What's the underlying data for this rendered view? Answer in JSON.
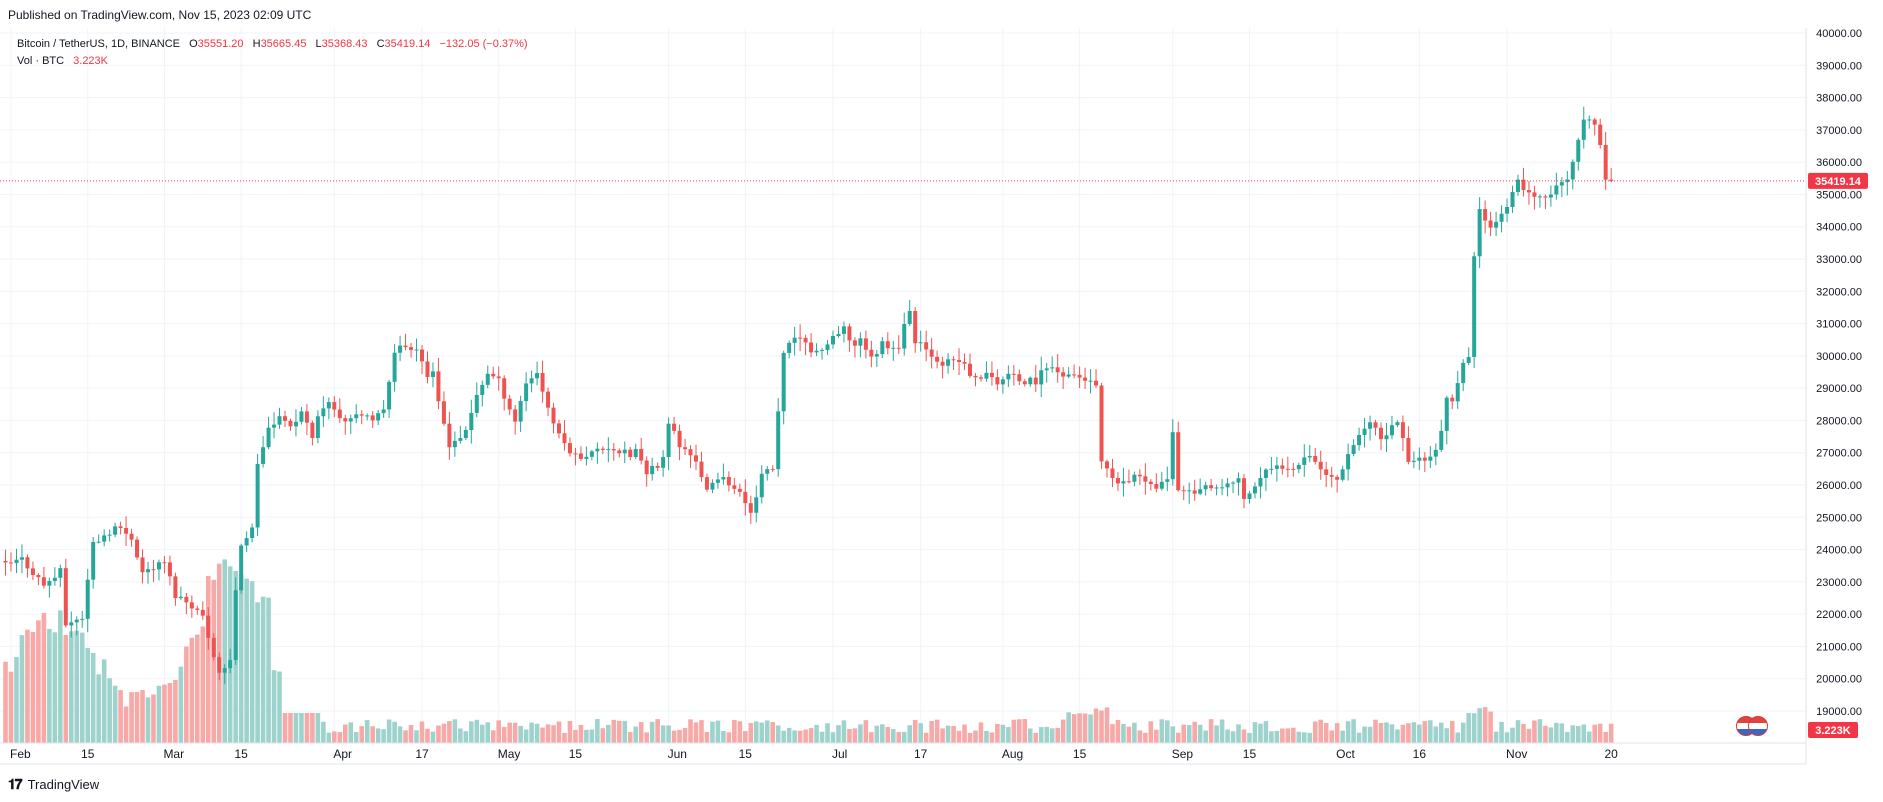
{
  "published": "Published on TradingView.com, Nov 15, 2023 02:09 UTC",
  "legend": {
    "symbol": "Bitcoin / TetherUS, 1D, BINANCE",
    "o_label": "O",
    "o_value": "35551.20",
    "h_label": "H",
    "h_value": "35665.45",
    "l_label": "L",
    "l_value": "35368.43",
    "c_label": "C",
    "c_value": "35419.14",
    "change": "−132.05 (−0.37%)",
    "vol_label": "Vol · BTC",
    "vol_value": "3.223K"
  },
  "footer": {
    "brand": "TradingView"
  },
  "colors": {
    "up": "#26a69a",
    "down": "#ef5350",
    "vol_up": "#9ed3cd",
    "vol_down": "#f7a9a7",
    "grid": "#f0f3fa",
    "axis_text": "#131722",
    "last_price_bg": "#f23645"
  },
  "chart_data": {
    "type": "candlestick",
    "ylim": [
      18000,
      40200
    ],
    "y_ticks": [
      "19000.00",
      "20000.00",
      "21000.00",
      "22000.00",
      "23000.00",
      "24000.00",
      "25000.00",
      "26000.00",
      "27000.00",
      "28000.00",
      "29000.00",
      "30000.00",
      "31000.00",
      "32000.00",
      "33000.00",
      "34000.00",
      "35000.00",
      "36000.00",
      "37000.00",
      "38000.00",
      "39000.00",
      "40000.00"
    ],
    "x_ticks": [
      {
        "label": "Feb",
        "day": 0
      },
      {
        "label": "15",
        "day": 14
      },
      {
        "label": "Mar",
        "day": 28
      },
      {
        "label": "15",
        "day": 42
      },
      {
        "label": "Apr",
        "day": 59
      },
      {
        "label": "17",
        "day": 75
      },
      {
        "label": "May",
        "day": 89
      },
      {
        "label": "15",
        "day": 103
      },
      {
        "label": "Jun",
        "day": 120
      },
      {
        "label": "15",
        "day": 134
      },
      {
        "label": "Jul",
        "day": 150
      },
      {
        "label": "17",
        "day": 166
      },
      {
        "label": "Aug",
        "day": 181
      },
      {
        "label": "15",
        "day": 195
      },
      {
        "label": "Sep",
        "day": 212
      },
      {
        "label": "15",
        "day": 226
      },
      {
        "label": "Oct",
        "day": 242
      },
      {
        "label": "16",
        "day": 257
      },
      {
        "label": "Nov",
        "day": 273
      },
      {
        "label": "20",
        "day": 292
      }
    ],
    "close_points": [
      [
        -1,
        23500
      ],
      [
        2,
        23700
      ],
      [
        6,
        22900
      ],
      [
        9,
        23300
      ],
      [
        10,
        21700
      ],
      [
        13,
        21900
      ],
      [
        15,
        24200
      ],
      [
        19,
        24700
      ],
      [
        22,
        24400
      ],
      [
        24,
        23300
      ],
      [
        28,
        23600
      ],
      [
        30,
        22600
      ],
      [
        33,
        22300
      ],
      [
        35,
        21900
      ],
      [
        38,
        20200
      ],
      [
        40,
        20500
      ],
      [
        41,
        22800
      ],
      [
        42,
        24200
      ],
      [
        44,
        24600
      ],
      [
        45,
        26700
      ],
      [
        47,
        27700
      ],
      [
        49,
        28100
      ],
      [
        51,
        27700
      ],
      [
        53,
        28300
      ],
      [
        55,
        27500
      ],
      [
        57,
        28500
      ],
      [
        59,
        28400
      ],
      [
        61,
        28000
      ],
      [
        63,
        28300
      ],
      [
        66,
        27900
      ],
      [
        68,
        28400
      ],
      [
        70,
        30200
      ],
      [
        72,
        30300
      ],
      [
        74,
        30300
      ],
      [
        76,
        29400
      ],
      [
        77,
        29400
      ],
      [
        78,
        28500
      ],
      [
        80,
        27300
      ],
      [
        83,
        27600
      ],
      [
        85,
        28800
      ],
      [
        87,
        29500
      ],
      [
        89,
        29200
      ],
      [
        92,
        28000
      ],
      [
        94,
        29200
      ],
      [
        96,
        29500
      ],
      [
        98,
        28400
      ],
      [
        100,
        27500
      ],
      [
        103,
        26900
      ],
      [
        106,
        27000
      ],
      [
        109,
        27200
      ],
      [
        113,
        26900
      ],
      [
        114,
        27100
      ],
      [
        116,
        26300
      ],
      [
        119,
        26800
      ],
      [
        120,
        28000
      ],
      [
        122,
        27200
      ],
      [
        125,
        26800
      ],
      [
        127,
        25800
      ],
      [
        130,
        26300
      ],
      [
        133,
        25700
      ],
      [
        135,
        25200
      ],
      [
        137,
        26300
      ],
      [
        139,
        26500
      ],
      [
        140,
        28300
      ],
      [
        141,
        30000
      ],
      [
        143,
        30600
      ],
      [
        145,
        30300
      ],
      [
        147,
        30100
      ],
      [
        150,
        30500
      ],
      [
        152,
        30800
      ],
      [
        154,
        30300
      ],
      [
        155,
        30600
      ],
      [
        157,
        29900
      ],
      [
        159,
        30400
      ],
      [
        162,
        30300
      ],
      [
        164,
        31500
      ],
      [
        165,
        30400
      ],
      [
        167,
        30200
      ],
      [
        170,
        29800
      ],
      [
        174,
        29800
      ],
      [
        175,
        29300
      ],
      [
        178,
        29400
      ],
      [
        180,
        29200
      ],
      [
        182,
        29400
      ],
      [
        185,
        29200
      ],
      [
        187,
        29200
      ],
      [
        189,
        29700
      ],
      [
        191,
        29500
      ],
      [
        194,
        29400
      ],
      [
        196,
        29300
      ],
      [
        198,
        29000
      ],
      [
        199,
        26700
      ],
      [
        201,
        26100
      ],
      [
        204,
        26100
      ],
      [
        206,
        26300
      ],
      [
        209,
        26000
      ],
      [
        210,
        26100
      ],
      [
        211,
        26100
      ],
      [
        212,
        27700
      ],
      [
        213,
        25900
      ],
      [
        215,
        25800
      ],
      [
        218,
        25900
      ],
      [
        220,
        25800
      ],
      [
        224,
        26200
      ],
      [
        225,
        25500
      ],
      [
        227,
        26000
      ],
      [
        229,
        26400
      ],
      [
        232,
        26600
      ],
      [
        234,
        26600
      ],
      [
        237,
        27000
      ],
      [
        240,
        26300
      ],
      [
        242,
        26200
      ],
      [
        244,
        27000
      ],
      [
        246,
        27600
      ],
      [
        248,
        27900
      ],
      [
        250,
        27400
      ],
      [
        253,
        28000
      ],
      [
        255,
        26800
      ],
      [
        257,
        26800
      ],
      [
        260,
        27000
      ],
      [
        262,
        28600
      ],
      [
        263,
        28500
      ],
      [
        265,
        29700
      ],
      [
        266,
        30000
      ],
      [
        267,
        33000
      ],
      [
        268,
        34500
      ],
      [
        270,
        34100
      ],
      [
        273,
        34500
      ],
      [
        275,
        35400
      ],
      [
        278,
        34800
      ],
      [
        281,
        35100
      ],
      [
        283,
        35300
      ],
      [
        284,
        35400
      ],
      [
        286,
        36700
      ],
      [
        287,
        37300
      ],
      [
        289,
        37100
      ],
      [
        290,
        36600
      ],
      [
        291,
        35500
      ],
      [
        292,
        35419
      ]
    ],
    "volume_relative": "high in Feb–Mar (peak near Mar 14), low afterwards with small spikes mid-Aug and late Oct",
    "last_price": "35419.14",
    "last_volume": "3.223K"
  }
}
